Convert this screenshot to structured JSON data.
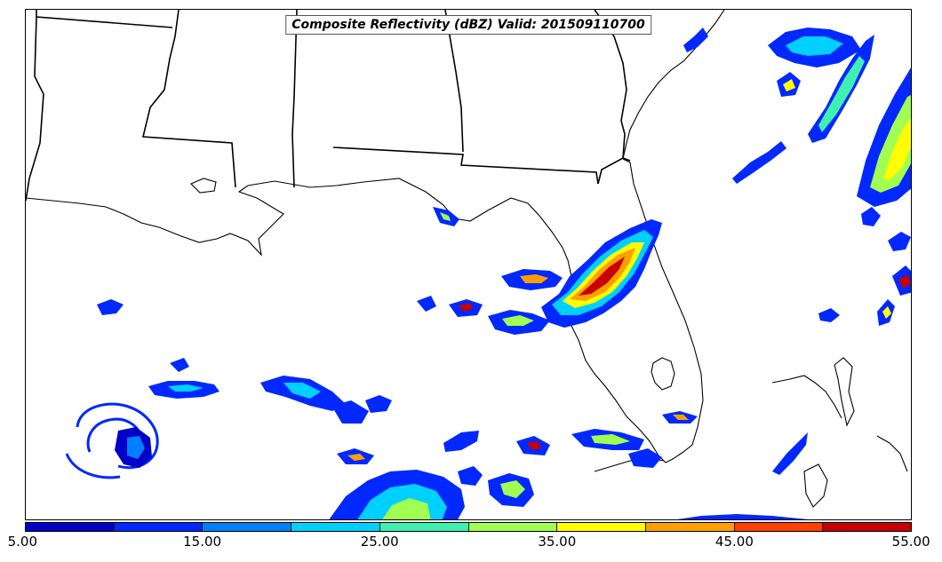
{
  "map": {
    "title": "Composite Reflectivity (dBZ) Valid: 201509110700"
  },
  "colorbar": {
    "min": 5,
    "max": 55,
    "colors": [
      "#0000c8",
      "#0028ff",
      "#0080ff",
      "#00d0ff",
      "#40f0b0",
      "#a0ff50",
      "#ffff00",
      "#ffa000",
      "#ff4000",
      "#c80000"
    ],
    "tick_labels": [
      "5.00",
      "15.00",
      "25.00",
      "35.00",
      "45.00",
      "55.00"
    ]
  },
  "chart_data": {
    "type": "heatmap",
    "title": "Composite Reflectivity (dBZ) Valid: 201509110700",
    "colorbar_range": [
      5,
      55
    ],
    "colorbar_ticks": [
      5,
      15,
      25,
      35,
      45,
      55
    ]
  }
}
